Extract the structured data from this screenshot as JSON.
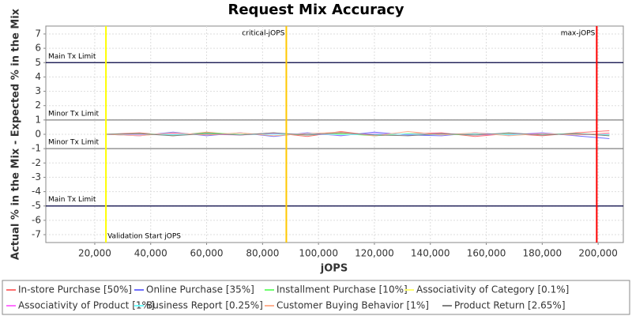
{
  "chart_data": {
    "type": "line",
    "title": "Request Mix Accuracy",
    "x_label": "jOPS",
    "y_label": "Actual % in the Mix - Expected % in the Mix",
    "x": [
      24000,
      36000,
      48000,
      60000,
      72000,
      84000,
      96000,
      108000,
      120000,
      132000,
      144000,
      156000,
      168000,
      180000,
      192000,
      204000
    ],
    "series": [
      {
        "name": "In-store Purchase [50%]",
        "color": "#ff7070",
        "values": [
          0,
          0.1,
          -0.1,
          0.15,
          -0.05,
          0.1,
          -0.15,
          0.2,
          -0.1,
          0.05,
          0.1,
          -0.15,
          0.05,
          -0.1,
          0.1,
          0.25
        ]
      },
      {
        "name": "Online Purchase [35%]",
        "color": "#7070ff",
        "values": [
          0,
          -0.1,
          0.15,
          -0.1,
          0.1,
          -0.15,
          0.1,
          -0.1,
          0.15,
          -0.05,
          -0.1,
          0.1,
          -0.05,
          0.1,
          -0.1,
          -0.3
        ]
      },
      {
        "name": "Installment Purchase [10%]",
        "color": "#70ff70",
        "values": [
          0,
          0.05,
          -0.05,
          0.1,
          0,
          0.05,
          -0.05,
          0.05,
          -0.1,
          0.05,
          0,
          -0.05,
          0.05,
          0,
          0.05,
          -0.05
        ]
      },
      {
        "name": "Associativity of Category [0.1%]",
        "color": "#ffff70",
        "values": [
          0,
          0,
          0.02,
          -0.02,
          0,
          0.01,
          -0.01,
          0,
          0.02,
          0,
          -0.01,
          0,
          0.01,
          0,
          0,
          0
        ]
      },
      {
        "name": "Associativity of Product [1%]",
        "color": "#ff70ff",
        "values": [
          0,
          -0.05,
          0.05,
          0,
          -0.05,
          0.05,
          0,
          -0.05,
          0.05,
          0,
          0.05,
          -0.05,
          0,
          0.05,
          -0.05,
          0.05
        ]
      },
      {
        "name": "Business Report [0.25%]",
        "color": "#70ffff",
        "values": [
          0,
          0.02,
          -0.02,
          0.03,
          -0.02,
          0,
          0.02,
          -0.03,
          0,
          0.02,
          -0.02,
          0.03,
          -0.02,
          0,
          0.02,
          -0.02
        ]
      },
      {
        "name": "Customer Buying Behavior [1%]",
        "color": "#ffb090",
        "values": [
          0,
          -0.1,
          0.1,
          -0.05,
          0.1,
          -0.1,
          0.05,
          0.15,
          -0.1,
          0.2,
          -0.05,
          0.1,
          -0.1,
          0.05,
          -0.05,
          0.1
        ]
      },
      {
        "name": "Product Return [2.65%]",
        "color": "#808080",
        "values": [
          0,
          0.05,
          -0.1,
          0.05,
          -0.05,
          0.1,
          -0.05,
          0.1,
          -0.05,
          -0.1,
          0.05,
          -0.05,
          0.1,
          -0.05,
          0.05,
          -0.1
        ]
      }
    ],
    "limits": [
      {
        "label": "Main Tx Limit",
        "value": 5,
        "color": "#000040"
      },
      {
        "label": "Minor Tx Limit",
        "value": 1,
        "color": "#808080"
      },
      {
        "label": "Minor Tx Limit",
        "value": -1,
        "color": "#808080"
      },
      {
        "label": "Main Tx Limit",
        "value": -5,
        "color": "#000040"
      }
    ],
    "markers": [
      {
        "label": "Validation Start jOPS",
        "value": 24000,
        "color": "#ffff00",
        "label_pos": "bottom"
      },
      {
        "label": "critical-jOPS",
        "value": 88500,
        "color": "#ffc800",
        "label_pos": "top"
      },
      {
        "label": "max-jOPS",
        "value": 199500,
        "color": "#ff0000",
        "label_pos": "top"
      }
    ],
    "xlim": [
      2500,
      209000
    ],
    "ylim": [
      -7.55,
      7.55
    ],
    "xticks": [
      {
        "value": 20000,
        "label": "20,000"
      },
      {
        "value": 40000,
        "label": "40,000"
      },
      {
        "value": 60000,
        "label": "60,000"
      },
      {
        "value": 80000,
        "label": "80,000"
      },
      {
        "value": 100000,
        "label": "100,000"
      },
      {
        "value": 120000,
        "label": "120,000"
      },
      {
        "value": 140000,
        "label": "140,000"
      },
      {
        "value": 160000,
        "label": "160,000"
      },
      {
        "value": 180000,
        "label": "180,000"
      },
      {
        "value": 200000,
        "label": "200,000"
      }
    ],
    "yticks": [
      -7,
      -6,
      -5,
      -4,
      -3,
      -2,
      -1,
      0,
      1,
      2,
      3,
      4,
      5,
      6,
      7
    ],
    "grid": true
  }
}
